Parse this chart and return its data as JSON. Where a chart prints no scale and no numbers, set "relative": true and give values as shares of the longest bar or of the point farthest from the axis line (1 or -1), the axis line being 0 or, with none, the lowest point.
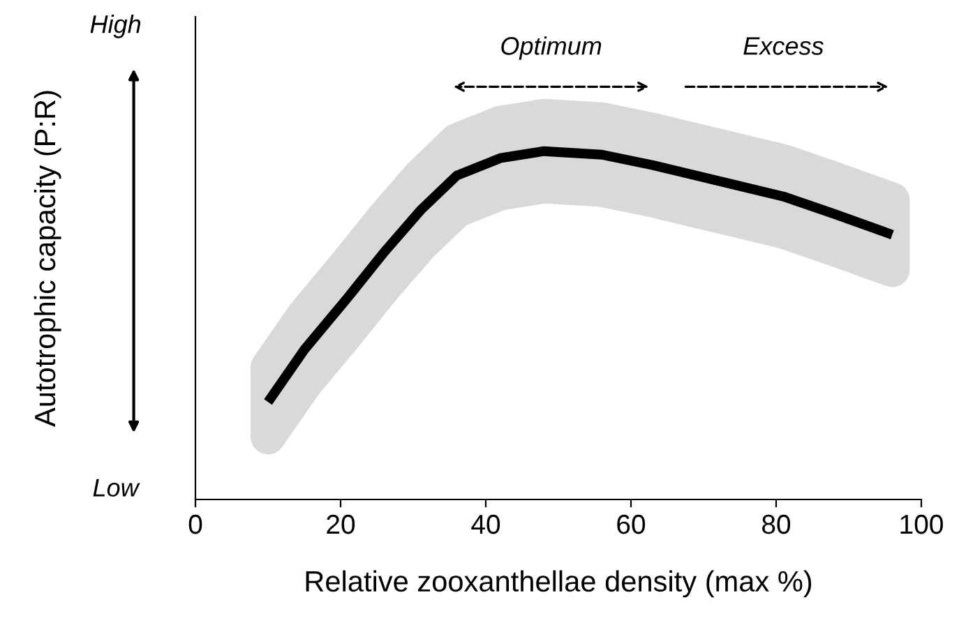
{
  "chart_data": {
    "type": "line",
    "relative": true,
    "xlabel": "Relative zooxanthellae density (max %)",
    "ylabel": "Autotrophic capacity (P:R)",
    "x": [
      10,
      15,
      21,
      26,
      31,
      36,
      42,
      48,
      56,
      63,
      71,
      81,
      88,
      96
    ],
    "series": [
      {
        "color": "#000000",
        "values": [
          0.28,
          0.43,
          0.58,
          0.71,
          0.83,
          0.93,
          0.98,
          1.0,
          0.99,
          0.96,
          0.92,
          0.87,
          0.82,
          0.76
        ],
        "lower": [
          0.18,
          0.33,
          0.48,
          0.61,
          0.73,
          0.83,
          0.88,
          0.9,
          0.89,
          0.86,
          0.82,
          0.77,
          0.72,
          0.66
        ],
        "upper": [
          0.38,
          0.53,
          0.68,
          0.81,
          0.93,
          1.03,
          1.08,
          1.1,
          1.09,
          1.06,
          1.02,
          0.97,
          0.92,
          0.86
        ]
      }
    ],
    "annotations": [
      "High",
      "Low",
      "Optimum",
      "Excess"
    ],
    "xlim": [
      0,
      100
    ],
    "xticks": [
      0,
      20,
      40,
      60,
      80,
      100
    ],
    "tick_labels": "x",
    "grid": false,
    "legend": false,
    "marker": "none",
    "line_style": "solid"
  }
}
